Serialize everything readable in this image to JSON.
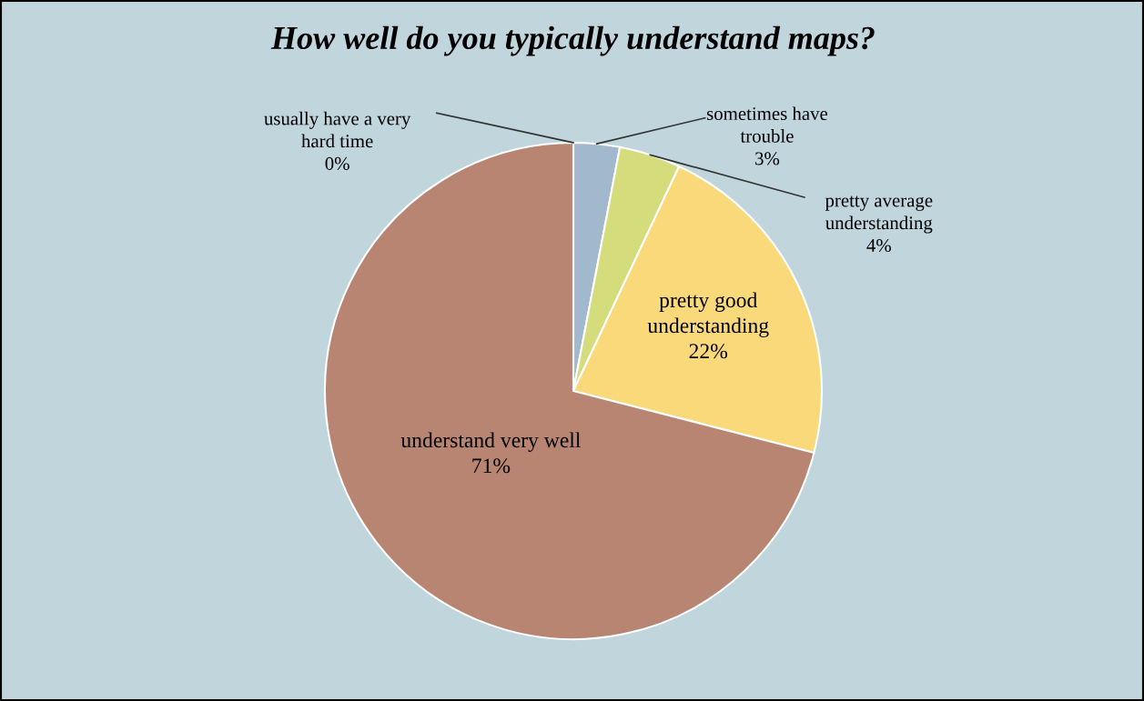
{
  "chart_data": {
    "type": "pie",
    "title": "How well do you typically understand maps?",
    "categories": [
      "usually have a very\nhard time",
      "sometimes have\ntrouble",
      "pretty average\nunderstanding",
      "pretty good\nunderstanding",
      "understand very well"
    ],
    "values": [
      0,
      3,
      4,
      22,
      71
    ],
    "colors": [
      "#8ea7c2",
      "#a2b8cc",
      "#d4dc7c",
      "#fad97b",
      "#b88572"
    ],
    "value_labels": [
      "0%",
      "3%",
      "4%",
      "22%",
      "71%"
    ],
    "legend": false
  }
}
